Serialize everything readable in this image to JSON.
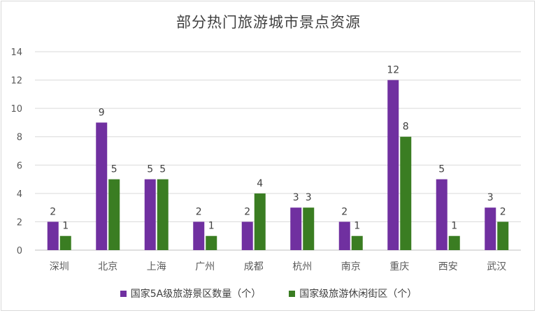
{
  "chart_data": {
    "type": "bar",
    "title": "部分热门旅游城市景点资源",
    "categories": [
      "深圳",
      "北京",
      "上海",
      "广州",
      "成都",
      "杭州",
      "南京",
      "重庆",
      "西安",
      "武汉"
    ],
    "series": [
      {
        "name": "国家5A级旅游景区数量（个）",
        "color": "#7030a0",
        "values": [
          2,
          9,
          5,
          2,
          2,
          3,
          2,
          12,
          5,
          3
        ]
      },
      {
        "name": "国家级旅游休闲街区（个）",
        "color": "#3a7d22",
        "values": [
          1,
          5,
          5,
          1,
          4,
          3,
          1,
          8,
          1,
          2
        ]
      }
    ],
    "yticks": [
      "0",
      "2",
      "4",
      "6",
      "8",
      "10",
      "12",
      "14"
    ],
    "ylim": [
      0,
      14
    ],
    "grid": true,
    "legend": "bottom"
  }
}
